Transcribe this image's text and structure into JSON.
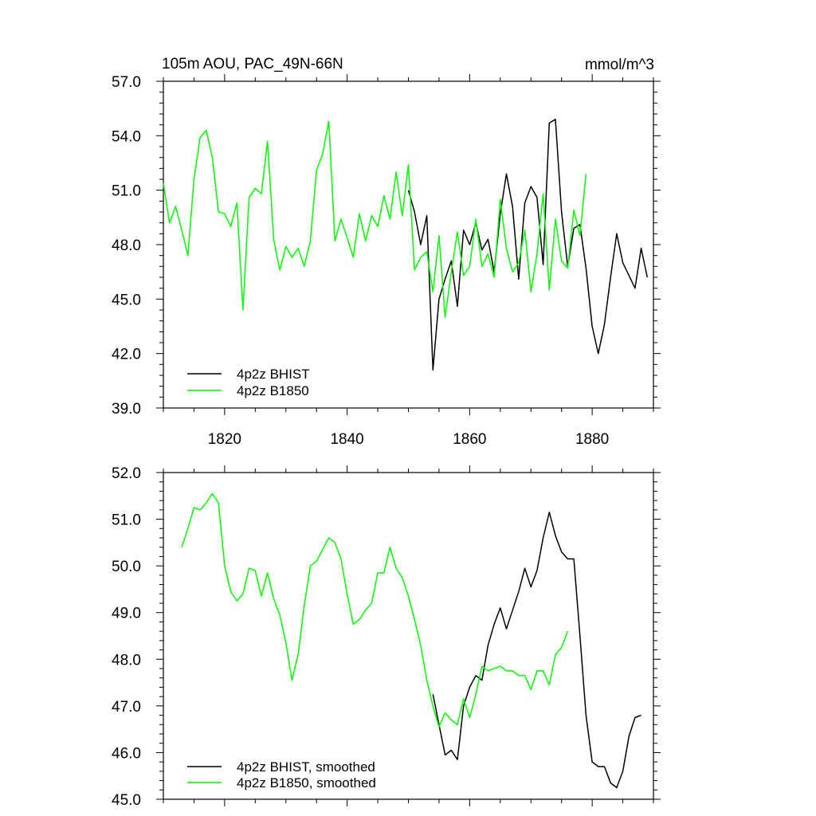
{
  "chart_data": [
    {
      "type": "line",
      "title": "105m AOU, PAC_49N-66N",
      "units": "mmol/m^3",
      "xlim": [
        1810,
        1890
      ],
      "ylim": [
        39,
        57
      ],
      "xticks": [
        1820,
        1840,
        1860,
        1880
      ],
      "xtick_labels": [
        "1820",
        "1840",
        "1860",
        "1880"
      ],
      "yticks": [
        39,
        42,
        45,
        48,
        51,
        54,
        57
      ],
      "ytick_labels": [
        "39.0",
        "42.0",
        "45.0",
        "48.0",
        "51.0",
        "54.0",
        "57.0"
      ],
      "legend_position": "bottom-left",
      "series": [
        {
          "name": "4p2z BHIST",
          "color": "#000000",
          "x": [
            1850,
            1851,
            1852,
            1853,
            1854,
            1855,
            1856,
            1857,
            1858,
            1859,
            1860,
            1861,
            1862,
            1863,
            1864,
            1865,
            1866,
            1867,
            1868,
            1869,
            1870,
            1871,
            1872,
            1873,
            1874,
            1875,
            1876,
            1877,
            1878,
            1879,
            1880,
            1881,
            1882,
            1883,
            1884,
            1885,
            1886,
            1887,
            1888,
            1889
          ],
          "y": [
            51.0,
            49.8,
            48.0,
            49.6,
            41.1,
            45.0,
            46.1,
            47.1,
            44.6,
            48.8,
            48.0,
            49.2,
            47.7,
            48.3,
            46.5,
            49.7,
            51.9,
            50.1,
            46.1,
            50.3,
            51.2,
            50.6,
            46.9,
            54.7,
            54.9,
            49.8,
            46.8,
            48.9,
            49.1,
            46.7,
            43.5,
            42.0,
            43.6,
            46.2,
            48.6,
            47.0,
            46.3,
            45.6,
            47.8,
            46.2
          ]
        },
        {
          "name": "4p2z B1850",
          "color": "#00ff00",
          "x": [
            1810,
            1811,
            1812,
            1813,
            1814,
            1815,
            1816,
            1817,
            1818,
            1819,
            1820,
            1821,
            1822,
            1823,
            1824,
            1825,
            1826,
            1827,
            1828,
            1829,
            1830,
            1831,
            1832,
            1833,
            1834,
            1835,
            1836,
            1837,
            1838,
            1839,
            1840,
            1841,
            1842,
            1843,
            1844,
            1845,
            1846,
            1847,
            1848,
            1849,
            1850,
            1851,
            1852,
            1853,
            1854,
            1855,
            1856,
            1857,
            1858,
            1859,
            1860,
            1861,
            1862,
            1863,
            1864,
            1865,
            1866,
            1867,
            1868,
            1869,
            1870,
            1871,
            1872,
            1873,
            1874,
            1875,
            1876,
            1877,
            1878,
            1879
          ],
          "y": [
            51.4,
            49.2,
            50.1,
            48.8,
            47.4,
            51.6,
            53.9,
            54.3,
            52.8,
            49.8,
            49.7,
            49.0,
            50.3,
            44.4,
            50.6,
            51.1,
            50.8,
            53.7,
            48.3,
            46.6,
            47.9,
            47.3,
            47.8,
            46.8,
            48.2,
            52.1,
            53.0,
            54.8,
            48.2,
            49.4,
            48.4,
            47.3,
            49.7,
            48.2,
            49.6,
            49.0,
            50.7,
            49.4,
            52.0,
            49.6,
            52.4,
            46.6,
            47.3,
            47.6,
            45.4,
            48.5,
            44.0,
            46.5,
            48.7,
            46.3,
            46.8,
            49.4,
            46.8,
            47.5,
            46.2,
            50.5,
            47.8,
            46.5,
            47.0,
            48.8,
            45.4,
            47.5,
            50.8,
            45.5,
            49.4,
            47.1,
            46.7,
            49.9,
            48.5,
            51.9
          ]
        }
      ]
    },
    {
      "type": "line",
      "title": "",
      "xlim": [
        1810,
        1890
      ],
      "ylim": [
        45,
        52
      ],
      "xticks": [
        1820,
        1840,
        1860,
        1880
      ],
      "xtick_labels": [],
      "yticks": [
        45,
        46,
        47,
        48,
        49,
        50,
        51,
        52
      ],
      "ytick_labels": [
        "45.0",
        "46.0",
        "47.0",
        "48.0",
        "49.0",
        "50.0",
        "51.0",
        "52.0"
      ],
      "legend_position": "bottom-left",
      "series": [
        {
          "name": "4p2z BHIST, smoothed",
          "color": "#000000",
          "x": [
            1854,
            1855,
            1856,
            1857,
            1858,
            1859,
            1860,
            1861,
            1862,
            1863,
            1864,
            1865,
            1866,
            1867,
            1868,
            1869,
            1870,
            1871,
            1872,
            1873,
            1874,
            1875,
            1876,
            1877,
            1878,
            1879,
            1880,
            1881,
            1882,
            1883,
            1884,
            1885,
            1886,
            1887,
            1888
          ],
          "y": [
            47.25,
            46.6,
            45.95,
            46.05,
            45.85,
            47.0,
            47.4,
            47.65,
            47.55,
            48.3,
            48.75,
            49.1,
            48.65,
            49.05,
            49.45,
            49.95,
            49.55,
            49.9,
            50.6,
            51.15,
            50.65,
            50.3,
            50.15,
            50.15,
            48.5,
            46.8,
            45.8,
            45.7,
            45.7,
            45.35,
            45.25,
            45.6,
            46.35,
            46.75,
            46.8
          ]
        },
        {
          "name": "4p2z B1850, smoothed",
          "color": "#00ff00",
          "x": [
            1813,
            1814,
            1815,
            1816,
            1817,
            1818,
            1819,
            1820,
            1821,
            1822,
            1823,
            1824,
            1825,
            1826,
            1827,
            1828,
            1829,
            1830,
            1831,
            1832,
            1833,
            1834,
            1835,
            1836,
            1837,
            1838,
            1839,
            1840,
            1841,
            1842,
            1843,
            1844,
            1845,
            1846,
            1847,
            1848,
            1849,
            1850,
            1851,
            1852,
            1853,
            1854,
            1855,
            1856,
            1857,
            1858,
            1859,
            1860,
            1861,
            1862,
            1863,
            1864,
            1865,
            1866,
            1867,
            1868,
            1869,
            1870,
            1871,
            1872,
            1873,
            1874,
            1875,
            1876
          ],
          "y": [
            50.4,
            50.8,
            51.25,
            51.2,
            51.35,
            51.55,
            51.35,
            50.0,
            49.45,
            49.25,
            49.4,
            49.95,
            49.9,
            49.35,
            49.85,
            49.3,
            48.95,
            48.35,
            47.55,
            48.1,
            49.15,
            50.0,
            50.1,
            50.35,
            50.6,
            50.5,
            50.15,
            49.4,
            48.75,
            48.85,
            49.05,
            49.2,
            49.85,
            49.85,
            50.4,
            49.95,
            49.75,
            49.35,
            48.85,
            48.3,
            47.55,
            47.0,
            46.55,
            46.85,
            46.7,
            46.6,
            47.15,
            46.75,
            47.25,
            47.85,
            47.75,
            47.8,
            47.85,
            47.75,
            47.75,
            47.65,
            47.65,
            47.35,
            47.75,
            47.75,
            47.45,
            48.1,
            48.25,
            48.6
          ]
        }
      ]
    }
  ]
}
